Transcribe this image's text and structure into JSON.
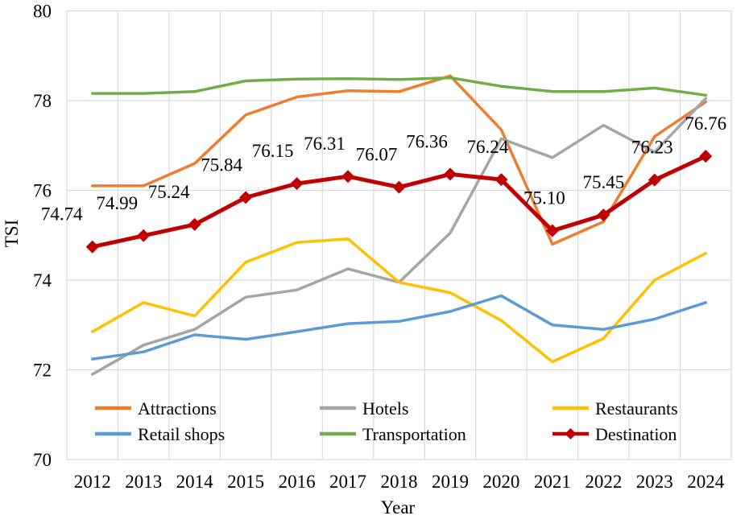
{
  "chart_data": {
    "type": "line",
    "title": "",
    "xlabel": "Year",
    "ylabel": "TSI",
    "ylim": [
      70,
      80
    ],
    "y_ticks": [
      70,
      72,
      74,
      76,
      78,
      80
    ],
    "grid": true,
    "gridline_color": "#D9D9D9",
    "background": "#FFFFFF",
    "text_color": "#000000",
    "legend_position": "inside-bottom",
    "categories": [
      "2012",
      "2013",
      "2014",
      "2015",
      "2016",
      "2017",
      "2018",
      "2019",
      "2020",
      "2021",
      "2022",
      "2023",
      "2024"
    ],
    "series": [
      {
        "name": "Attractions",
        "color": "#ED7D31",
        "values": [
          76.1,
          76.1,
          76.6,
          77.68,
          78.08,
          78.22,
          78.2,
          78.55,
          77.35,
          74.8,
          75.3,
          77.2,
          77.97
        ]
      },
      {
        "name": "Hotels",
        "color": "#A5A5A5",
        "values": [
          71.9,
          72.55,
          72.9,
          73.62,
          73.78,
          74.25,
          73.95,
          75.05,
          77.15,
          76.73,
          77.45,
          76.85,
          78.05
        ]
      },
      {
        "name": "Restaurants",
        "color": "#FFC000",
        "values": [
          72.85,
          73.5,
          73.2,
          74.4,
          74.84,
          74.92,
          73.95,
          73.72,
          73.1,
          72.18,
          72.7,
          74.0,
          74.6
        ]
      },
      {
        "name": "Retail shops",
        "color": "#5B9BD5",
        "values": [
          72.24,
          72.4,
          72.78,
          72.68,
          72.85,
          73.03,
          73.08,
          73.3,
          73.65,
          73.0,
          72.9,
          73.13,
          73.5
        ]
      },
      {
        "name": "Transportation",
        "color": "#70AD47",
        "values": [
          78.16,
          78.16,
          78.2,
          78.44,
          78.48,
          78.49,
          78.47,
          78.51,
          78.32,
          78.2,
          78.2,
          78.28,
          78.12
        ]
      },
      {
        "name": "Destination",
        "color": "#C00000",
        "marker": "diamond",
        "values": [
          74.74,
          74.99,
          75.24,
          75.84,
          76.15,
          76.31,
          76.07,
          76.36,
          76.24,
          75.1,
          75.45,
          76.23,
          76.76
        ],
        "data_labels": [
          "74.74",
          "74.99",
          "75.24",
          "75.84",
          "76.15",
          "76.31",
          "76.07",
          "76.36",
          "76.24",
          "75.10",
          "75.45",
          "76.23",
          "76.76"
        ]
      }
    ],
    "legend": {
      "rows": [
        [
          "Attractions",
          "Hotels",
          "Restaurants"
        ],
        [
          "Retail shops",
          "Transportation",
          "Destination"
        ]
      ]
    }
  }
}
